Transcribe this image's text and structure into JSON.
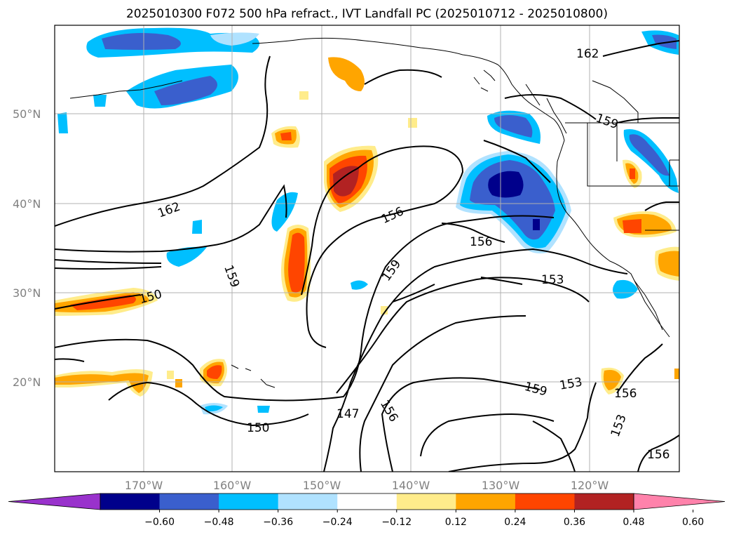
{
  "title": "2025010300 F072 500 hPa refract., IVT Landfall PC (2025010712 - 2025010800)",
  "lat_labels": [
    "50°N",
    "40°N",
    "30°N",
    "20°N"
  ],
  "lon_labels": [
    "170°W",
    "160°W",
    "150°W",
    "140°W",
    "130°W",
    "120°W"
  ],
  "colorbar": {
    "colors": [
      "#9932cc",
      "#00008b",
      "#3a5fcd",
      "#00bfff",
      "#b0e2ff",
      "#ffffff",
      "#ffec8b",
      "#ffa500",
      "#ff4500",
      "#b22222",
      "#ff82ab"
    ],
    "tick_labels": [
      "−0.60",
      "−0.48",
      "−0.36",
      "−0.24",
      "−0.12",
      "0.12",
      "0.24",
      "0.36",
      "0.48",
      "0.60"
    ]
  },
  "contour_labels": [
    "162",
    "162",
    "159",
    "159",
    "159",
    "156",
    "156",
    "156",
    "156",
    "156",
    "153",
    "153",
    "153",
    "150",
    "150",
    "147",
    "159"
  ]
}
